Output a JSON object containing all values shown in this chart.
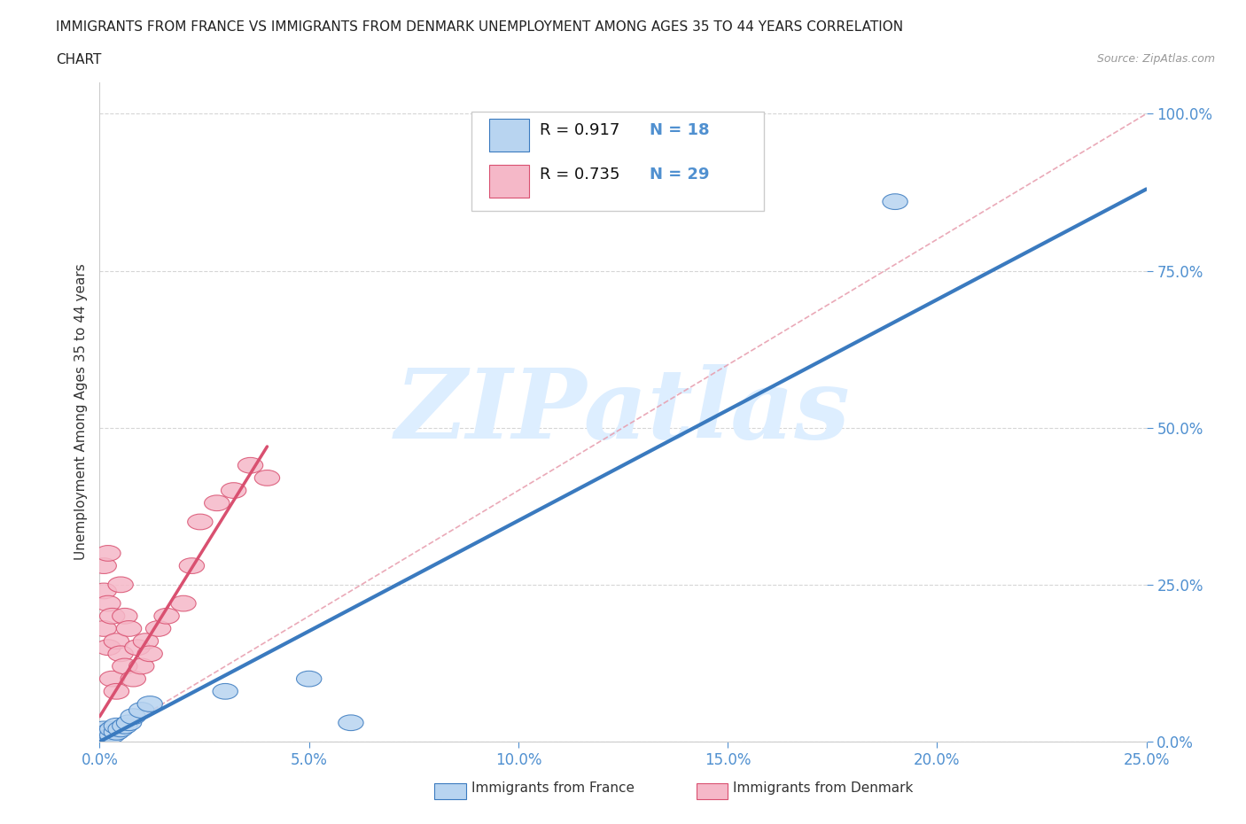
{
  "title_line1": "IMMIGRANTS FROM FRANCE VS IMMIGRANTS FROM DENMARK UNEMPLOYMENT AMONG AGES 35 TO 44 YEARS CORRELATION",
  "title_line2": "CHART",
  "source": "Source: ZipAtlas.com",
  "ylabel": "Unemployment Among Ages 35 to 44 years",
  "xlim": [
    0.0,
    0.25
  ],
  "ylim": [
    0.0,
    1.05
  ],
  "xticks": [
    0.0,
    0.05,
    0.1,
    0.15,
    0.2,
    0.25
  ],
  "yticks": [
    0.0,
    0.25,
    0.5,
    0.75,
    1.0
  ],
  "france_R": 0.917,
  "france_N": 18,
  "denmark_R": 0.735,
  "denmark_N": 29,
  "france_color": "#b8d4f0",
  "denmark_color": "#f5b8c8",
  "france_line_color": "#3a7abf",
  "denmark_line_color": "#d95070",
  "diagonal_color": "#e8a0b0",
  "legend_france_label": "Immigrants from France",
  "legend_denmark_label": "Immigrants from Denmark",
  "watermark_color": "#ddeeff",
  "background_color": "#ffffff",
  "tick_color": "#5090d0",
  "title_fontsize": 11,
  "axis_label_fontsize": 11,
  "tick_fontsize": 12,
  "france_scatter_x": [
    0.001,
    0.001,
    0.002,
    0.002,
    0.003,
    0.003,
    0.004,
    0.004,
    0.005,
    0.006,
    0.007,
    0.008,
    0.01,
    0.012,
    0.03,
    0.05,
    0.19,
    0.06
  ],
  "france_scatter_y": [
    0.01,
    0.02,
    0.005,
    0.015,
    0.01,
    0.02,
    0.015,
    0.025,
    0.02,
    0.025,
    0.03,
    0.04,
    0.05,
    0.06,
    0.08,
    0.1,
    0.86,
    0.03
  ],
  "denmark_scatter_x": [
    0.001,
    0.001,
    0.001,
    0.002,
    0.002,
    0.002,
    0.003,
    0.003,
    0.004,
    0.004,
    0.005,
    0.005,
    0.006,
    0.006,
    0.007,
    0.008,
    0.009,
    0.01,
    0.011,
    0.012,
    0.014,
    0.016,
    0.02,
    0.022,
    0.024,
    0.028,
    0.032,
    0.036,
    0.04
  ],
  "denmark_scatter_y": [
    0.18,
    0.24,
    0.28,
    0.15,
    0.22,
    0.3,
    0.1,
    0.2,
    0.08,
    0.16,
    0.25,
    0.14,
    0.2,
    0.12,
    0.18,
    0.1,
    0.15,
    0.12,
    0.16,
    0.14,
    0.18,
    0.2,
    0.22,
    0.28,
    0.35,
    0.38,
    0.4,
    0.44,
    0.42
  ],
  "france_line_x": [
    0.0,
    0.25
  ],
  "france_line_y": [
    0.0,
    0.88
  ],
  "denmark_line_x": [
    0.0,
    0.04
  ],
  "denmark_line_y": [
    0.04,
    0.47
  ]
}
